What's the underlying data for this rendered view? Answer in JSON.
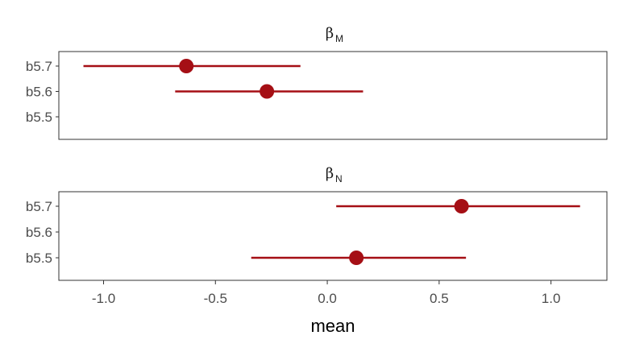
{
  "chart_data": {
    "type": "pointrange",
    "xlabel": "mean",
    "xlim": [
      -1.2,
      1.25
    ],
    "xticks": [
      -1.0,
      -0.5,
      0.0,
      0.5,
      1.0
    ],
    "xtick_labels": [
      "-1.0",
      "-0.5",
      "0.0",
      "0.5",
      "1.0"
    ],
    "categories": [
      "b5.7",
      "b5.6",
      "b5.5"
    ],
    "color": "#a50f15",
    "panels": [
      {
        "title_symbol": "β",
        "title_subscript": "M",
        "points": [
          {
            "model": "b5.7",
            "mean": -0.63,
            "lower": -1.09,
            "upper": -0.12
          },
          {
            "model": "b5.6",
            "mean": -0.27,
            "lower": -0.68,
            "upper": 0.16
          }
        ]
      },
      {
        "title_symbol": "β",
        "title_subscript": "N",
        "points": [
          {
            "model": "b5.7",
            "mean": 0.6,
            "lower": 0.04,
            "upper": 1.13
          },
          {
            "model": "b5.5",
            "mean": 0.13,
            "lower": -0.34,
            "upper": 0.62
          }
        ]
      }
    ]
  }
}
